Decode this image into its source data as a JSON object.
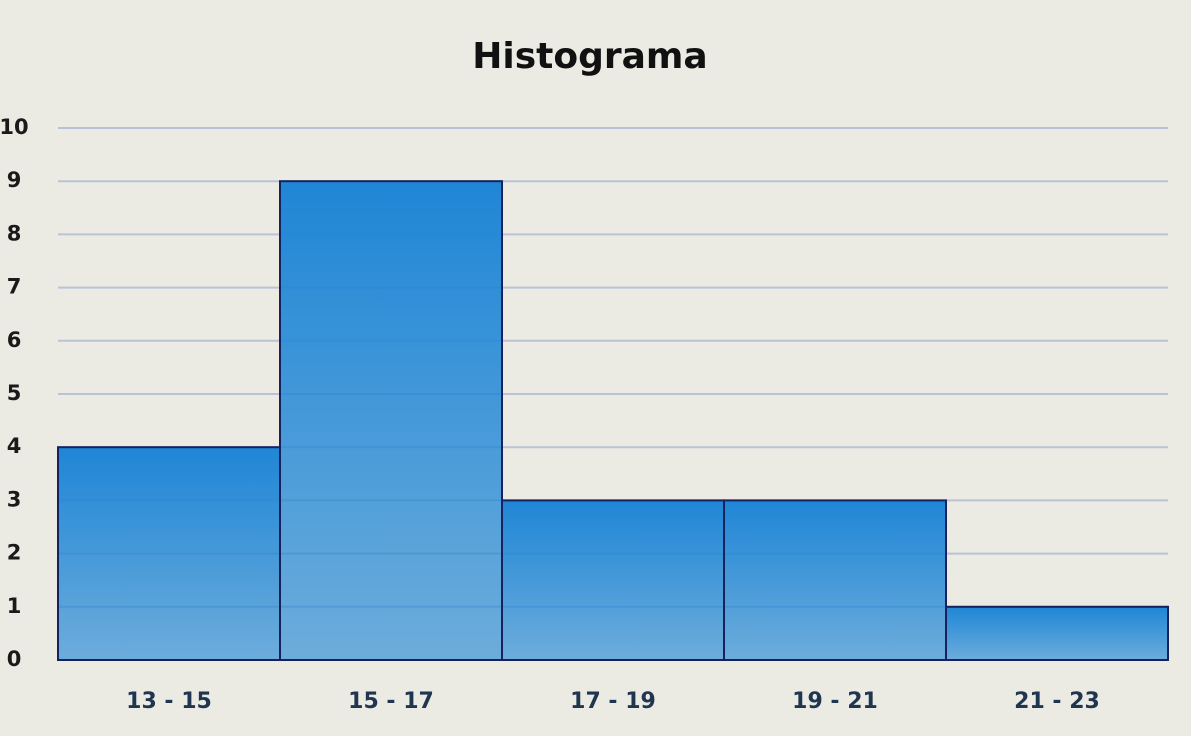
{
  "chart_data": {
    "type": "bar",
    "title": "Histograma",
    "categories": [
      "13 - 15",
      "15 - 17",
      "17 - 19",
      "19 - 21",
      "21 - 23"
    ],
    "values": [
      4,
      9,
      3,
      3,
      1
    ],
    "color": "#1f86d6",
    "ylim": [
      0,
      10
    ],
    "yticks": [
      0,
      1,
      2,
      3,
      4,
      5,
      6,
      7,
      8,
      9,
      10
    ],
    "grid": true
  }
}
